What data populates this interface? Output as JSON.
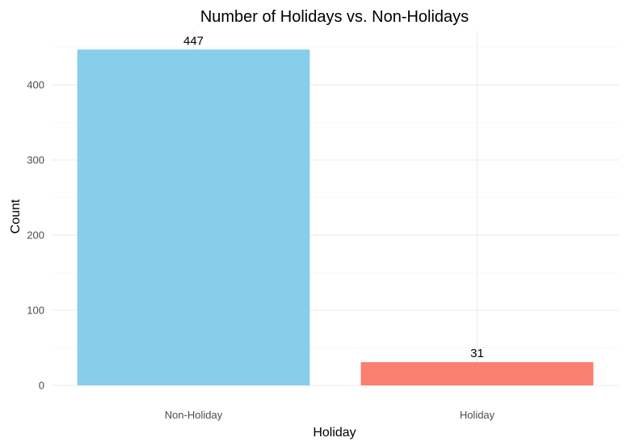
{
  "chart_data": {
    "type": "bar",
    "title": "Number of Holidays vs. Non-Holidays",
    "xlabel": "Holiday",
    "ylabel": "Count",
    "categories": [
      "Non-Holiday",
      "Holiday"
    ],
    "values": [
      447,
      31
    ],
    "data_labels": [
      "447",
      "31"
    ],
    "colors": [
      "#87CEEB",
      "#FA8072"
    ],
    "ylim": [
      0,
      470
    ],
    "y_ticks": [
      0,
      100,
      200,
      300,
      400
    ],
    "y_minor_ticks": [
      50,
      150,
      250,
      350,
      450
    ],
    "grid": true,
    "legend": "none"
  }
}
